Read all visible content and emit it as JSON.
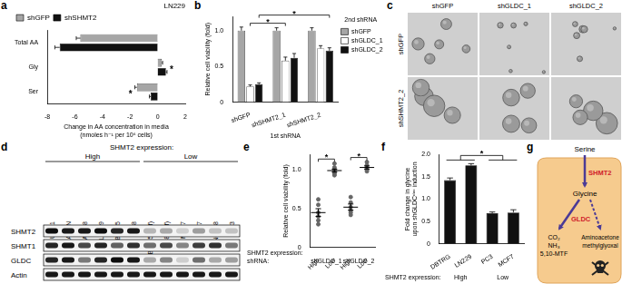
{
  "chart_data": [
    {
      "panel": "a",
      "type": "bar",
      "orientation": "horizontal",
      "title": "LN229",
      "categories": [
        "Total AA",
        "Gly",
        "Ser"
      ],
      "xlabel": [
        "Change in AA concentration in media",
        "(nmoles h⁻¹ per 10⁶ cells)"
      ],
      "series": [
        {
          "name": "shGFP",
          "color": "#a6a6a6",
          "values": [
            -5.6,
            0.3,
            -1.5
          ],
          "errors": [
            0.3,
            0.06,
            0.15
          ]
        },
        {
          "name": "shSHMT2",
          "color": "#111111",
          "values": [
            -7.1,
            0.6,
            -0.5
          ],
          "errors": [
            0.35,
            0.08,
            0.1
          ]
        }
      ],
      "xlim": [
        -8,
        2
      ],
      "xticks": [
        -8,
        -6,
        -4,
        -2,
        0,
        2
      ],
      "grid": false,
      "legend": "top",
      "annotations": [
        {
          "text": "*",
          "category": "Gly"
        },
        {
          "text": "*",
          "category": "Ser"
        }
      ]
    },
    {
      "panel": "b",
      "type": "bar",
      "categories": [
        "shGFP",
        "shSHMT2_1",
        "shSHMT2_2"
      ],
      "xlabel": "1st shRNA",
      "ylabel": [
        "Relative cell viability (fold)"
      ],
      "legend_title": "2nd shRNA",
      "legend": "right",
      "series": [
        {
          "name": "shGFP",
          "color": "#a6a6a6",
          "values": [
            1.0,
            1.0,
            1.0
          ],
          "errors": [
            0.05,
            0.04,
            0.04
          ]
        },
        {
          "name": "shGLDC_1",
          "color": "#ffffff",
          "values": [
            0.22,
            0.58,
            0.75
          ],
          "errors": [
            0.02,
            0.05,
            0.04
          ]
        },
        {
          "name": "shGLDC_2",
          "color": "#111111",
          "values": [
            0.25,
            0.62,
            0.72
          ],
          "errors": [
            0.02,
            0.06,
            0.04
          ]
        }
      ],
      "ylim": [
        0,
        1.2
      ],
      "yticks": [
        0,
        0.5,
        {
          "value": 1,
          "label": "1.0"
        }
      ],
      "grid": false,
      "comparisons": [
        {
          "text": "*",
          "from": {
            "category": 0,
            "series": 1
          },
          "to": {
            "category": 1,
            "series": 1
          }
        },
        {
          "text": "*",
          "from": {
            "category": 0,
            "series": 2
          },
          "to": {
            "category": 2,
            "series": 2
          }
        }
      ]
    },
    {
      "panel": "e",
      "type": "scatter",
      "categories": [
        "High",
        "Low",
        "High",
        "Low"
      ],
      "category_title": "SHMT2 expression:",
      "groups_title": "shRNA:",
      "groups": [
        {
          "label": "shGLDC_1",
          "categories": [
            0,
            1
          ]
        },
        {
          "label": "shGLDC_2",
          "categories": [
            2,
            3
          ]
        }
      ],
      "ylabel": [
        "Relative cell viability (fold)"
      ],
      "ylim": [
        0,
        1.2
      ],
      "yticks": [
        0,
        0.5,
        {
          "value": 1,
          "label": "1.0"
        }
      ],
      "grid": false,
      "color": "#666666",
      "points": [
        [
          0.62,
          0.55,
          0.45,
          0.4,
          0.35,
          0.3
        ],
        [
          1.08,
          1.03,
          1.0,
          0.97,
          0.95,
          0.93
        ],
        [
          0.65,
          0.58,
          0.52,
          0.48,
          0.45,
          0.42
        ],
        [
          1.1,
          1.06,
          1.03,
          1.0,
          0.98
        ]
      ],
      "means": [
        0.45,
        0.99,
        0.52,
        1.03
      ],
      "errors": [
        0.05,
        0.02,
        0.04,
        0.02
      ],
      "comparisons": [
        {
          "text": "*",
          "between": [
            0,
            1
          ]
        },
        {
          "text": "*",
          "between": [
            2,
            3
          ]
        }
      ]
    },
    {
      "panel": "f",
      "type": "bar",
      "categories": [
        "DBTRG",
        "LN229",
        "PC3",
        "MCF7"
      ],
      "values": [
        1.42,
        1.75,
        0.68,
        0.7
      ],
      "errors": [
        0.05,
        0.04,
        0.03,
        0.06
      ],
      "color": "#111111",
      "ylabel": [
        "Fold change in glycine",
        "upon shGLDCᵈᵒˣ induction"
      ],
      "ylim": [
        0,
        2
      ],
      "yticks": [
        0,
        0.5,
        {
          "value": 1,
          "label": "1.0"
        },
        1.5,
        {
          "value": 2,
          "label": "2.0"
        }
      ],
      "grid": false,
      "groups_title": "SHMT2 expression:",
      "groups": [
        {
          "label": "High",
          "categories": [
            0,
            1
          ]
        },
        {
          "label": "Low",
          "categories": [
            2,
            3
          ]
        }
      ],
      "comparisons": [
        {
          "text": "*",
          "between": [
            [
              0,
              1
            ],
            [
              2,
              3
            ]
          ]
        }
      ]
    }
  ],
  "images": {
    "panel": "c",
    "columns": [
      "shGFP",
      "shGLDC_1",
      "shGLDC_2"
    ],
    "rows": [
      "shGFP",
      "shSHMT2_2"
    ]
  },
  "blot": {
    "panel": "d",
    "header": "SHMT2 expression:",
    "groups": [
      "High",
      "Low"
    ],
    "lanes": [
      {
        "name": "U-251",
        "group": "High"
      },
      {
        "name": "ACHN",
        "group": "High"
      },
      {
        "name": "A2058",
        "group": "High"
      },
      {
        "name": "LN229",
        "group": "High"
      },
      {
        "name": "BT145",
        "group": "High"
      },
      {
        "name": "0308",
        "group": "High"
      },
      {
        "name": "BT145 (diff)",
        "group": "Low"
      },
      {
        "name": "0308 (diff)",
        "group": "Low"
      },
      {
        "name": "MCF7",
        "group": "Low"
      },
      {
        "name": "U87",
        "group": "Low"
      },
      {
        "name": "HNC-1-8",
        "group": "Low"
      },
      {
        "name": "PC3",
        "group": "Low"
      }
    ],
    "rows": [
      {
        "name": "SHMT2",
        "intensity": [
          0.95,
          0.9,
          0.9,
          0.95,
          0.85,
          0.9,
          0.25,
          0.3,
          0.15,
          0.35,
          0.2,
          0.2
        ]
      },
      {
        "name": "SHMT1",
        "intensity": [
          0.85,
          0.9,
          0.7,
          0.85,
          0.6,
          0.8,
          0.55,
          0.7,
          0.45,
          0.75,
          0.8,
          0.5
        ]
      },
      {
        "name": "GLDC",
        "intensity": [
          0.85,
          0.9,
          0.5,
          0.85,
          0.95,
          0.9,
          0.3,
          0.45,
          0.15,
          0.55,
          0.3,
          0.35
        ]
      },
      {
        "name": "Actin",
        "intensity": [
          0.9,
          0.9,
          0.9,
          0.9,
          0.9,
          0.9,
          0.9,
          0.9,
          0.9,
          0.9,
          0.9,
          0.9
        ]
      }
    ]
  },
  "diagram": {
    "panel": "g",
    "substrate": "Serine",
    "first_enzyme": "SHMT2",
    "intermediate": "Glycine",
    "second_enzyme": "GLDC",
    "second_products": [
      "CO₂",
      "NH₃",
      "5,10-MTF"
    ],
    "toxic_products": [
      "Aminoacetone",
      "methylglyoxal"
    ]
  }
}
